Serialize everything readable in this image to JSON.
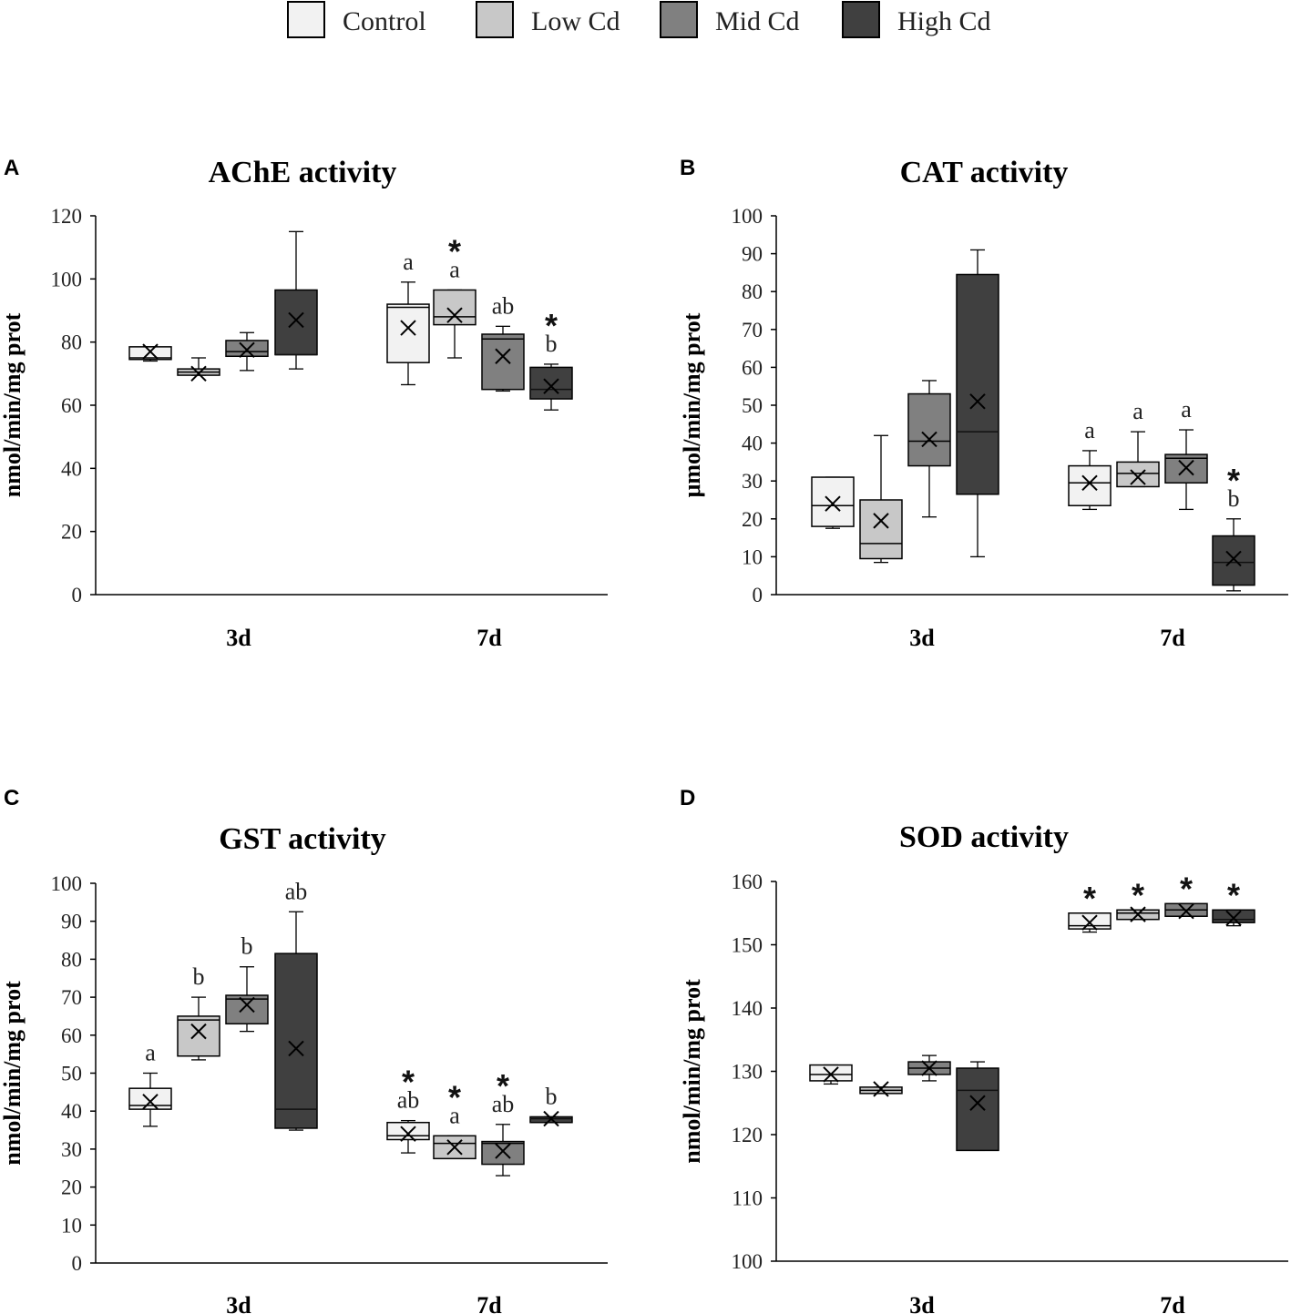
{
  "legend": {
    "entries": [
      {
        "label": "Control",
        "color": "#f2f2f2"
      },
      {
        "label": "Low Cd",
        "color": "#c8c8c8"
      },
      {
        "label": "Mid Cd",
        "color": "#808080"
      },
      {
        "label": "High Cd",
        "color": "#404040"
      }
    ]
  },
  "chart_data": [
    {
      "panel": "A",
      "type": "box",
      "title": "AChE activity",
      "ylabel": "nmol/min/mg prot",
      "xlabel": "",
      "ylim": [
        0,
        120
      ],
      "yticks": [
        0,
        20,
        40,
        60,
        80,
        100,
        120
      ],
      "groups": [
        "3d",
        "7d"
      ],
      "series_names": [
        "Control",
        "Low Cd",
        "Mid Cd",
        "High Cd"
      ],
      "boxes": [
        [
          {
            "min": 74,
            "q1": 74.5,
            "median": 75,
            "q3": 78.5,
            "max": 78.5,
            "mean": 77,
            "star": "",
            "letter": ""
          },
          {
            "min": 69.5,
            "q1": 69.5,
            "median": 70.5,
            "q3": 71.5,
            "max": 75,
            "mean": 70,
            "star": "",
            "letter": ""
          },
          {
            "min": 71,
            "q1": 75.5,
            "median": 77,
            "q3": 80.5,
            "max": 83,
            "mean": 77.5,
            "star": "",
            "letter": ""
          },
          {
            "min": 71.5,
            "q1": 76,
            "median": 76,
            "q3": 96.5,
            "max": 115,
            "mean": 87,
            "star": "",
            "letter": ""
          }
        ],
        [
          {
            "min": 66.5,
            "q1": 73.5,
            "median": 91,
            "q3": 92,
            "max": 99,
            "mean": 84.5,
            "star": "",
            "letter": "a"
          },
          {
            "min": 75,
            "q1": 85.5,
            "median": 88,
            "q3": 96.5,
            "max": 96.5,
            "mean": 88.5,
            "star": "*",
            "letter": "a"
          },
          {
            "min": 64.5,
            "q1": 65,
            "median": 81,
            "q3": 82.5,
            "max": 85,
            "mean": 75.5,
            "star": "",
            "letter": "ab"
          },
          {
            "min": 58.5,
            "q1": 62,
            "median": 65,
            "q3": 72,
            "max": 73,
            "mean": 66,
            "star": "*",
            "letter": "b"
          }
        ]
      ]
    },
    {
      "panel": "B",
      "type": "box",
      "title": "CAT activity",
      "ylabel": "μmol/min/mg prot",
      "xlabel": "",
      "ylim": [
        0,
        100
      ],
      "yticks": [
        0,
        10,
        20,
        30,
        40,
        50,
        60,
        70,
        80,
        90,
        100
      ],
      "groups": [
        "3d",
        "7d"
      ],
      "series_names": [
        "Control",
        "Low Cd",
        "Mid Cd",
        "High Cd"
      ],
      "boxes": [
        [
          {
            "min": 17.5,
            "q1": 18,
            "median": 23.5,
            "q3": 31,
            "max": 31,
            "mean": 24,
            "star": "",
            "letter": ""
          },
          {
            "min": 8.5,
            "q1": 9.5,
            "median": 13.5,
            "q3": 25,
            "max": 42,
            "mean": 19.5,
            "star": "",
            "letter": ""
          },
          {
            "min": 20.5,
            "q1": 34,
            "median": 40.5,
            "q3": 53,
            "max": 56.5,
            "mean": 41,
            "star": "",
            "letter": ""
          },
          {
            "min": 10,
            "q1": 26.5,
            "median": 43,
            "q3": 84.5,
            "max": 91,
            "mean": 51,
            "star": "",
            "letter": ""
          }
        ],
        [
          {
            "min": 22.5,
            "q1": 23.5,
            "median": 29.5,
            "q3": 34,
            "max": 38,
            "mean": 29.5,
            "star": "",
            "letter": "a"
          },
          {
            "min": 28.5,
            "q1": 28.5,
            "median": 32,
            "q3": 35,
            "max": 43,
            "mean": 31,
            "star": "",
            "letter": "a"
          },
          {
            "min": 22.5,
            "q1": 29.5,
            "median": 36,
            "q3": 37,
            "max": 43.5,
            "mean": 33.5,
            "star": "",
            "letter": "a"
          },
          {
            "min": 1,
            "q1": 2.5,
            "median": 8.5,
            "q3": 15.5,
            "max": 20,
            "mean": 9.5,
            "star": "*",
            "letter": "b"
          }
        ]
      ]
    },
    {
      "panel": "C",
      "type": "box",
      "title": "GST activity",
      "ylabel": "nmol/min/mg prot",
      "xlabel": "",
      "ylim": [
        0,
        100
      ],
      "yticks": [
        0,
        10,
        20,
        30,
        40,
        50,
        60,
        70,
        80,
        90,
        100
      ],
      "groups": [
        "3d",
        "7d"
      ],
      "series_names": [
        "Control",
        "Low Cd",
        "Mid Cd",
        "High Cd"
      ],
      "boxes": [
        [
          {
            "min": 36,
            "q1": 40.5,
            "median": 41.5,
            "q3": 46,
            "max": 50,
            "mean": 42.5,
            "star": "",
            "letter": "a"
          },
          {
            "min": 53.5,
            "q1": 54.5,
            "median": 64,
            "q3": 65,
            "max": 70,
            "mean": 61,
            "star": "",
            "letter": "b"
          },
          {
            "min": 61,
            "q1": 63,
            "median": 69.5,
            "q3": 70.5,
            "max": 78,
            "mean": 68,
            "star": "",
            "letter": "b"
          },
          {
            "min": 35,
            "q1": 35.5,
            "median": 40.5,
            "q3": 81.5,
            "max": 92.5,
            "mean": 56.5,
            "star": "",
            "letter": "ab"
          }
        ],
        [
          {
            "min": 29,
            "q1": 32.5,
            "median": 33.5,
            "q3": 37,
            "max": 37.5,
            "mean": 34,
            "star": "*",
            "letter": "ab"
          },
          {
            "min": 27.5,
            "q1": 27.5,
            "median": 31.5,
            "q3": 33.5,
            "max": 33.5,
            "mean": 30.5,
            "star": "*",
            "letter": "a"
          },
          {
            "min": 23,
            "q1": 26,
            "median": 31.5,
            "q3": 32,
            "max": 36.5,
            "mean": 29.5,
            "star": "*",
            "letter": "ab"
          },
          {
            "min": 37,
            "q1": 37,
            "median": 38,
            "q3": 38.5,
            "max": 38.5,
            "mean": 38,
            "star": "",
            "letter": "b"
          }
        ]
      ]
    },
    {
      "panel": "D",
      "type": "box",
      "title": "SOD activity",
      "ylabel": "nmol/min/mg prot",
      "xlabel": "",
      "ylim": [
        100,
        160
      ],
      "yticks": [
        100,
        110,
        120,
        130,
        140,
        150,
        160
      ],
      "groups": [
        "3d",
        "7d"
      ],
      "series_names": [
        "Control",
        "Low Cd",
        "Mid Cd",
        "High Cd"
      ],
      "boxes": [
        [
          {
            "min": 128,
            "q1": 128.5,
            "median": 129.5,
            "q3": 131,
            "max": 131,
            "mean": 129.5,
            "star": "",
            "letter": ""
          },
          {
            "min": 126.5,
            "q1": 126.5,
            "median": 127,
            "q3": 127.5,
            "max": 127.5,
            "mean": 127.2,
            "star": "",
            "letter": ""
          },
          {
            "min": 128.5,
            "q1": 129.5,
            "median": 130.5,
            "q3": 131.5,
            "max": 132.5,
            "mean": 130.5,
            "star": "",
            "letter": ""
          },
          {
            "min": 117.5,
            "q1": 117.5,
            "median": 127,
            "q3": 130.5,
            "max": 131.5,
            "mean": 125,
            "star": "",
            "letter": ""
          }
        ],
        [
          {
            "min": 152,
            "q1": 152.5,
            "median": 153,
            "q3": 155,
            "max": 155,
            "mean": 153.5,
            "star": "*",
            "letter": ""
          },
          {
            "min": 154,
            "q1": 154,
            "median": 155,
            "q3": 155.5,
            "max": 155.5,
            "mean": 154.8,
            "star": "*",
            "letter": ""
          },
          {
            "min": 154.5,
            "q1": 154.5,
            "median": 155.5,
            "q3": 156.5,
            "max": 156.5,
            "mean": 155.3,
            "star": "*",
            "letter": ""
          },
          {
            "min": 153,
            "q1": 153.5,
            "median": 154,
            "q3": 155.5,
            "max": 155.5,
            "mean": 154.2,
            "star": "*",
            "letter": ""
          }
        ]
      ]
    }
  ]
}
